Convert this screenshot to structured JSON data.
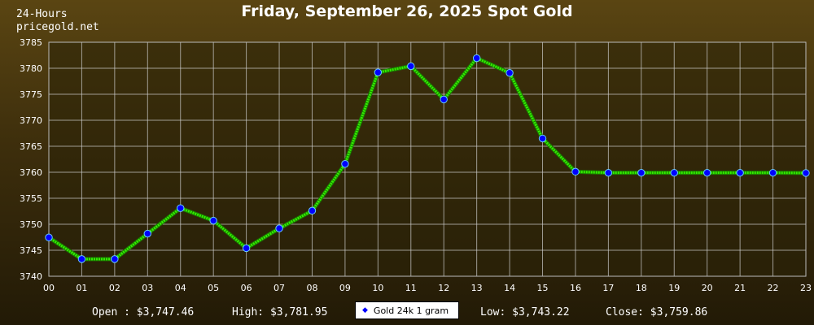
{
  "header": {
    "corner_line1": "24-Hours",
    "corner_line2": "pricegold.net",
    "title": "Friday, September 26, 2025 Spot Gold"
  },
  "stats": {
    "open": "Open : $3,747.46",
    "high": "High: $3,781.95",
    "low": "Low: $3,743.22",
    "close": "Close: $3,759.86"
  },
  "legend": {
    "label": "Gold 24k 1 gram"
  },
  "colors": {
    "line": "#33ee00",
    "marker_fill": "#0000ff",
    "marker_stroke": "#66ccff",
    "plot_background": "#2a2208",
    "grid": "#cfcfcf"
  },
  "chart_data": {
    "type": "line",
    "title": "Friday, September 26, 2025 Spot Gold",
    "x": [
      "00",
      "01",
      "02",
      "03",
      "04",
      "05",
      "06",
      "07",
      "08",
      "09",
      "10",
      "11",
      "12",
      "13",
      "14",
      "15",
      "16",
      "17",
      "18",
      "19",
      "20",
      "21",
      "22",
      "23"
    ],
    "series": [
      {
        "name": "Gold 24k 1 gram",
        "values": [
          3747.46,
          3743.3,
          3743.3,
          3748.2,
          3753.1,
          3750.7,
          3745.4,
          3749.2,
          3752.6,
          3761.6,
          3779.2,
          3780.4,
          3774.0,
          3781.95,
          3779.1,
          3766.5,
          3760.1,
          3759.9,
          3759.9,
          3759.9,
          3759.9,
          3759.9,
          3759.9,
          3759.86
        ]
      }
    ],
    "ylim": [
      3740,
      3785
    ],
    "yticks": [
      "3740",
      "3745",
      "3750",
      "3755",
      "3760",
      "3765",
      "3770",
      "3775",
      "3780",
      "3785"
    ],
    "grid": true,
    "legend_position": "bottom-center"
  }
}
